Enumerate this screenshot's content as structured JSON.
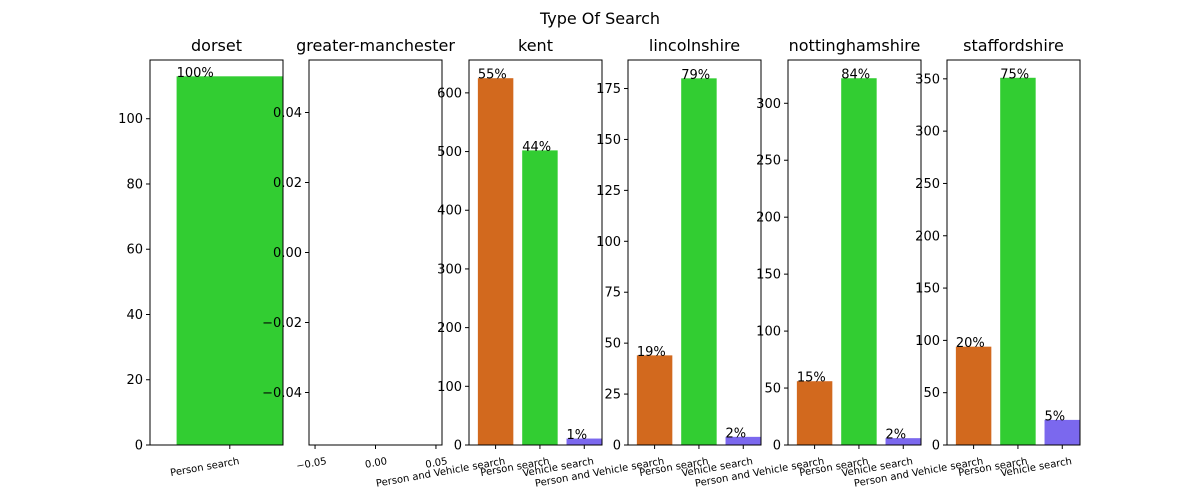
{
  "figure": {
    "title": "Type Of Search"
  },
  "colors": {
    "Person and Vehicle search": "#d2691e",
    "Person search": "#32cd32",
    "Vehicle search": "#7b68ee"
  },
  "chart_data": [
    {
      "type": "bar",
      "title": "dorset",
      "categories": [
        "Person search"
      ],
      "values": [
        113
      ],
      "labels": [
        "100%"
      ],
      "ylim": [
        0,
        118
      ],
      "yticks": [
        0,
        20,
        40,
        60,
        80,
        100
      ],
      "ytick_labels": [
        "0",
        "20",
        "40",
        "60",
        "80",
        "100"
      ],
      "xtick_labels": [
        "Person search"
      ]
    },
    {
      "type": "bar",
      "title": "greater-manchester",
      "categories": [],
      "values": [],
      "labels": [],
      "ylim": [
        -0.055,
        0.055
      ],
      "yticks": [
        -0.04,
        -0.02,
        0.0,
        0.02,
        0.04
      ],
      "ytick_labels": [
        "−0.04",
        "−0.02",
        "0.00",
        "0.02",
        "0.04"
      ],
      "xlim": [
        -0.055,
        0.055
      ],
      "xticks": [
        -0.05,
        0.0,
        0.05
      ],
      "xtick_labels": [
        "−0.05",
        "0.00",
        "0.05"
      ]
    },
    {
      "type": "bar",
      "title": "kent",
      "categories": [
        "Person and Vehicle search",
        "Person search",
        "Vehicle search"
      ],
      "values": [
        625,
        502,
        11
      ],
      "labels": [
        "55%",
        "44%",
        "1%"
      ],
      "ylim": [
        0,
        656
      ],
      "yticks": [
        0,
        100,
        200,
        300,
        400,
        500,
        600
      ],
      "ytick_labels": [
        "0",
        "100",
        "200",
        "300",
        "400",
        "500",
        "600"
      ],
      "xtick_labels": [
        "Person and Vehicle search",
        "Person search",
        "Vehicle search"
      ]
    },
    {
      "type": "bar",
      "title": "lincolnshire",
      "categories": [
        "Person and Vehicle search",
        "Person search",
        "Vehicle search"
      ],
      "values": [
        44,
        180,
        4
      ],
      "labels": [
        "19%",
        "79%",
        "2%"
      ],
      "ylim": [
        0,
        189
      ],
      "yticks": [
        0,
        25,
        50,
        75,
        100,
        125,
        150,
        175
      ],
      "ytick_labels": [
        "0",
        "25",
        "50",
        "75",
        "100",
        "125",
        "150",
        "175"
      ],
      "xtick_labels": [
        "Person and Vehicle search",
        "Person search",
        "Vehicle search"
      ]
    },
    {
      "type": "bar",
      "title": "nottinghamshire",
      "categories": [
        "Person and Vehicle search",
        "Person search",
        "Vehicle search"
      ],
      "values": [
        56,
        322,
        6
      ],
      "labels": [
        "15%",
        "84%",
        "2%"
      ],
      "ylim": [
        0,
        338
      ],
      "yticks": [
        0,
        50,
        100,
        150,
        200,
        250,
        300
      ],
      "ytick_labels": [
        "0",
        "50",
        "100",
        "150",
        "200",
        "250",
        "300"
      ],
      "xtick_labels": [
        "Person and Vehicle search",
        "Person search",
        "Vehicle search"
      ]
    },
    {
      "type": "bar",
      "title": "staffordshire",
      "categories": [
        "Person and Vehicle search",
        "Person search",
        "Vehicle search"
      ],
      "values": [
        94,
        351,
        24
      ],
      "labels": [
        "20%",
        "75%",
        "5%"
      ],
      "ylim": [
        0,
        368
      ],
      "yticks": [
        0,
        50,
        100,
        150,
        200,
        250,
        300,
        350
      ],
      "ytick_labels": [
        "0",
        "50",
        "100",
        "150",
        "200",
        "250",
        "300",
        "350"
      ],
      "xtick_labels": [
        "Person and Vehicle search",
        "Person search",
        "Vehicle search"
      ]
    }
  ]
}
